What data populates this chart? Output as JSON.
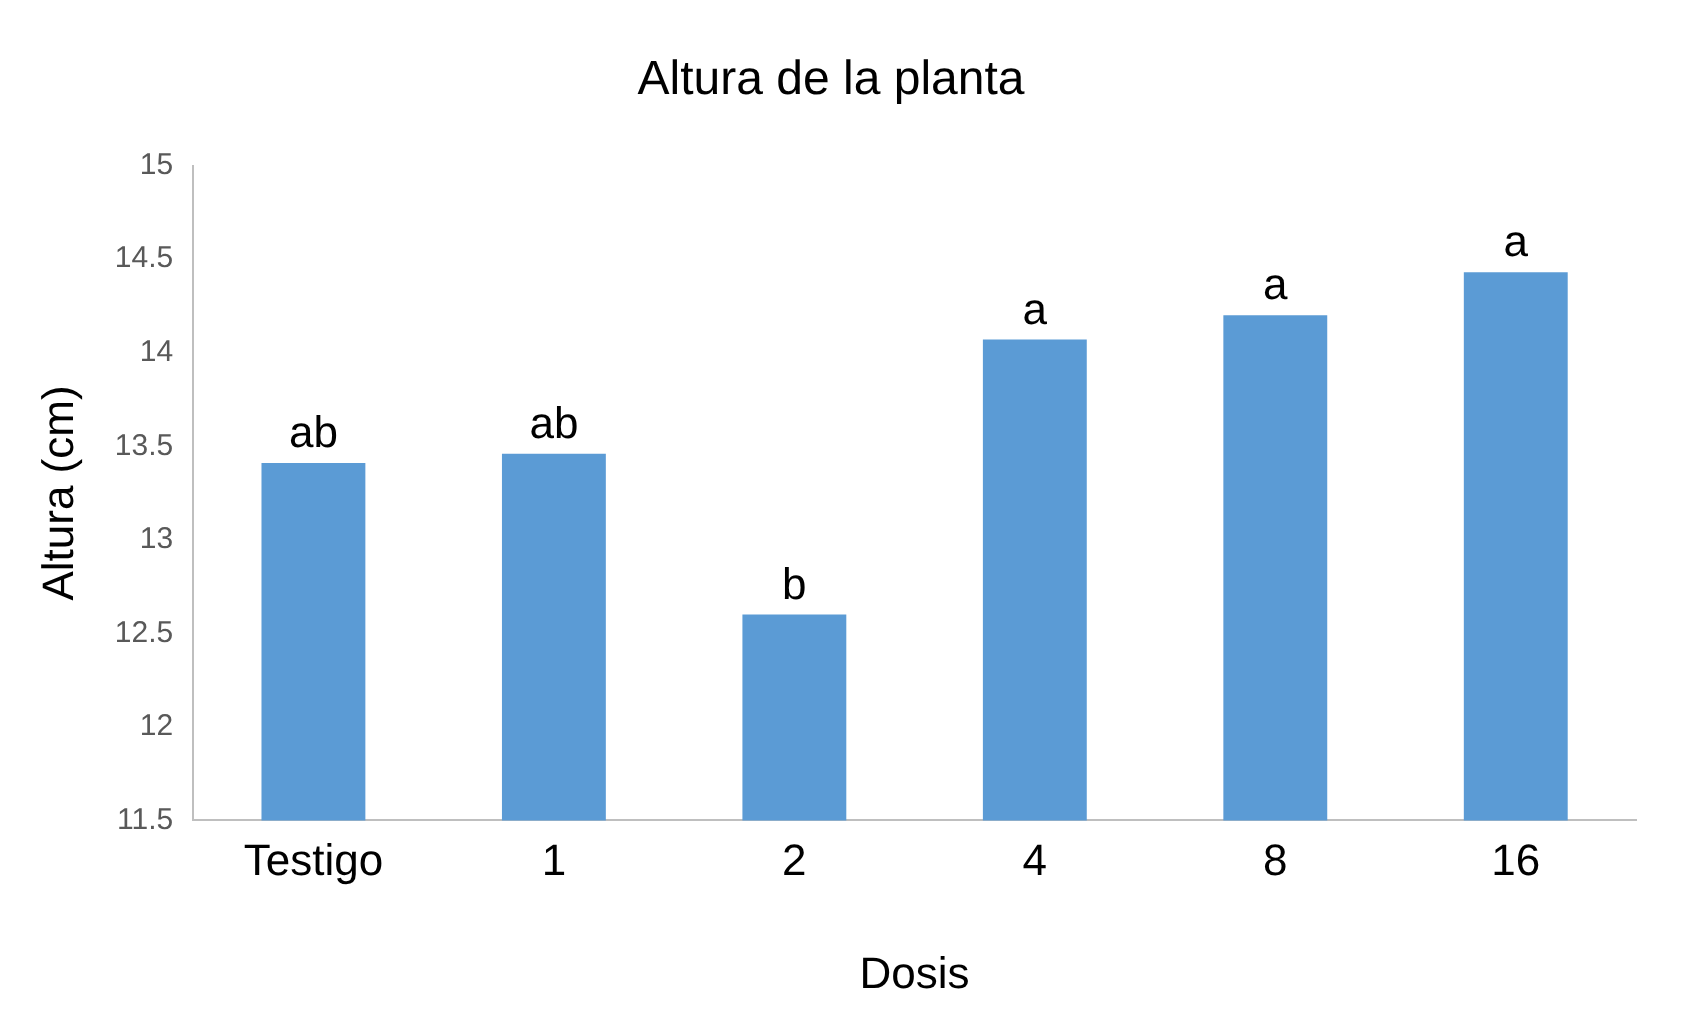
{
  "chart_data": {
    "type": "bar",
    "title": "Altura de la planta",
    "xlabel": "Dosis",
    "ylabel": "Altura (cm)",
    "categories": [
      "Testigo",
      "1",
      "2",
      "4",
      "8",
      "16"
    ],
    "values": [
      13.41,
      13.46,
      12.6,
      14.07,
      14.2,
      14.43
    ],
    "color": "#5b9bd5",
    "ylim": [
      11.5,
      15
    ],
    "yticks": [
      11.5,
      12,
      12.5,
      13,
      13.5,
      14,
      14.5,
      15
    ],
    "grid": false,
    "legend": false,
    "annotations": [
      {
        "text": "ab",
        "x": "Testigo",
        "y": 13.41
      },
      {
        "text": "ab",
        "x": "1",
        "y": 13.46
      },
      {
        "text": "b",
        "x": "2",
        "y": 12.6
      },
      {
        "text": "a",
        "x": "4",
        "y": 14.07
      },
      {
        "text": "a",
        "x": "8",
        "y": 14.2
      },
      {
        "text": "a",
        "x": "16",
        "y": 14.43
      }
    ]
  }
}
